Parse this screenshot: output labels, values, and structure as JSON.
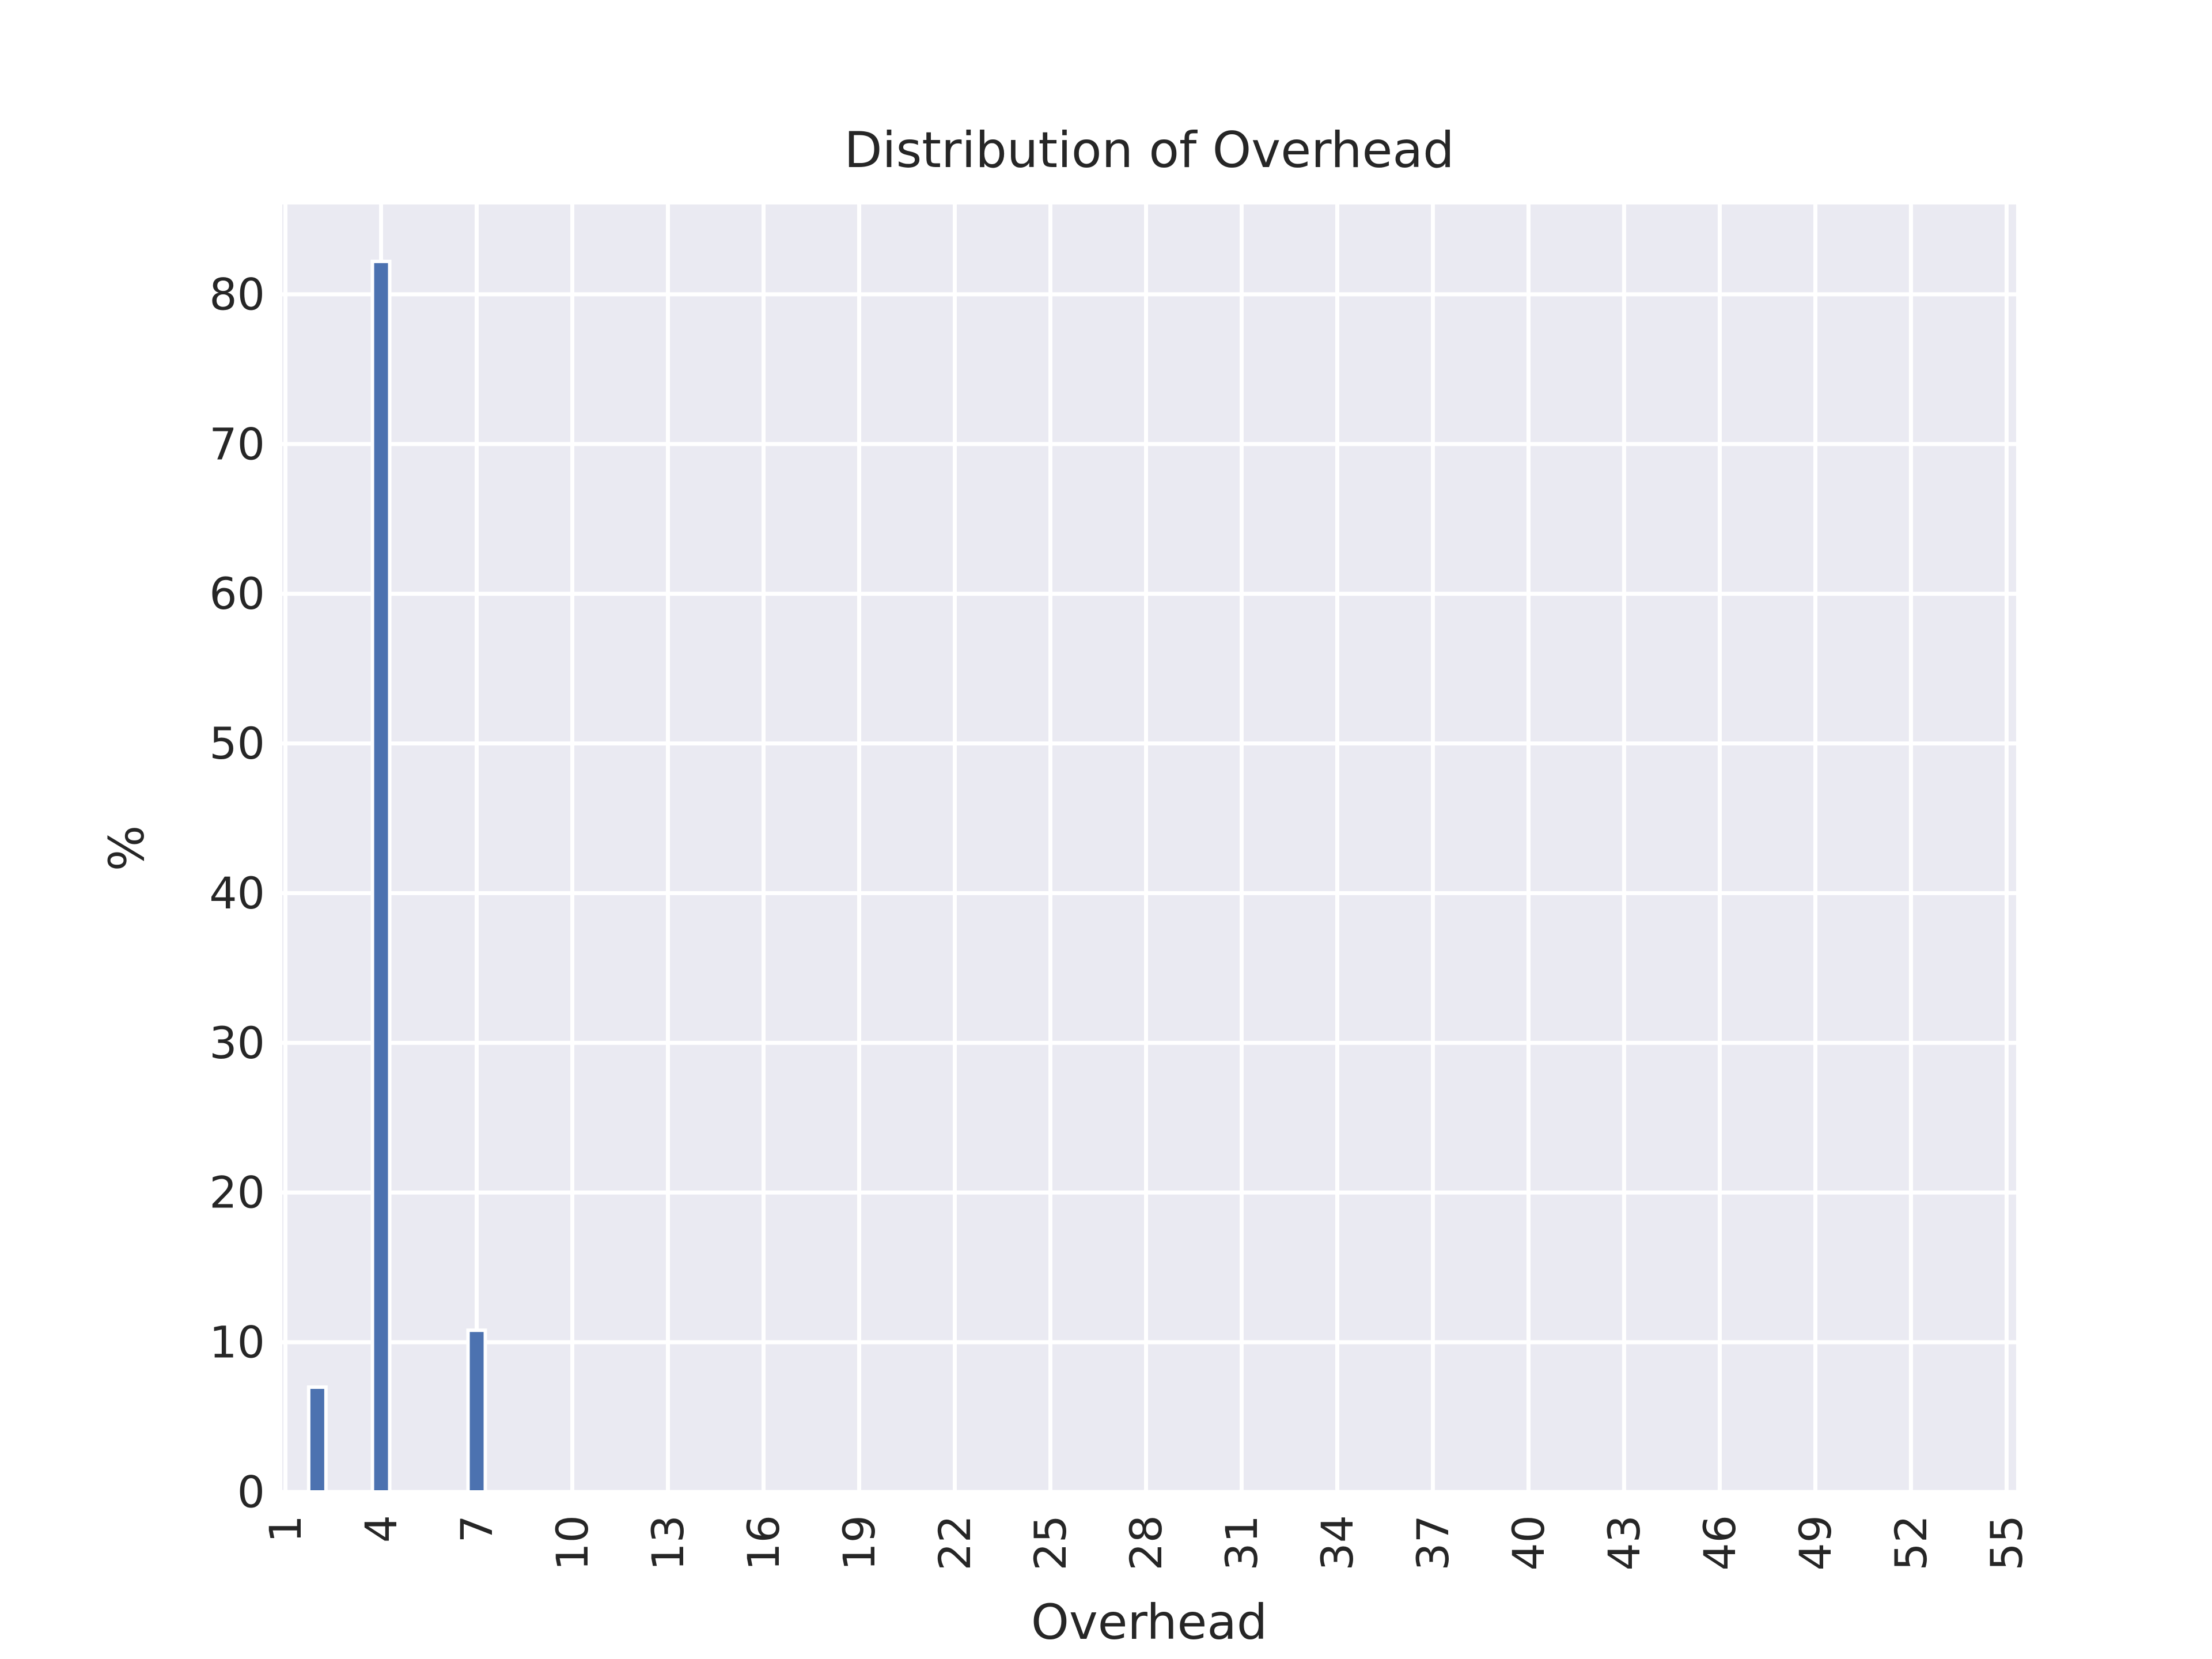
{
  "chart_data": {
    "type": "bar",
    "title": "Distribution of Overhead",
    "xlabel": "Overhead",
    "ylabel": "%",
    "xlim": [
      0.9,
      55.3
    ],
    "ylim": [
      0,
      86
    ],
    "x_ticks": [
      "1",
      "4",
      "7",
      "10",
      "13",
      "16",
      "19",
      "22",
      "25",
      "28",
      "31",
      "34",
      "37",
      "40",
      "43",
      "46",
      "49",
      "52",
      "55"
    ],
    "y_ticks": [
      "0",
      "10",
      "20",
      "30",
      "40",
      "50",
      "60",
      "70",
      "80"
    ],
    "grid": true,
    "bars": [
      {
        "x": 2,
        "value": 7.0
      },
      {
        "x": 4,
        "value": 82.2
      },
      {
        "x": 7,
        "value": 10.8
      }
    ],
    "colors": {
      "bar": "#4c72b0",
      "plot_background": "#eaeaf2",
      "grid": "#ffffff",
      "text": "#262626"
    }
  }
}
